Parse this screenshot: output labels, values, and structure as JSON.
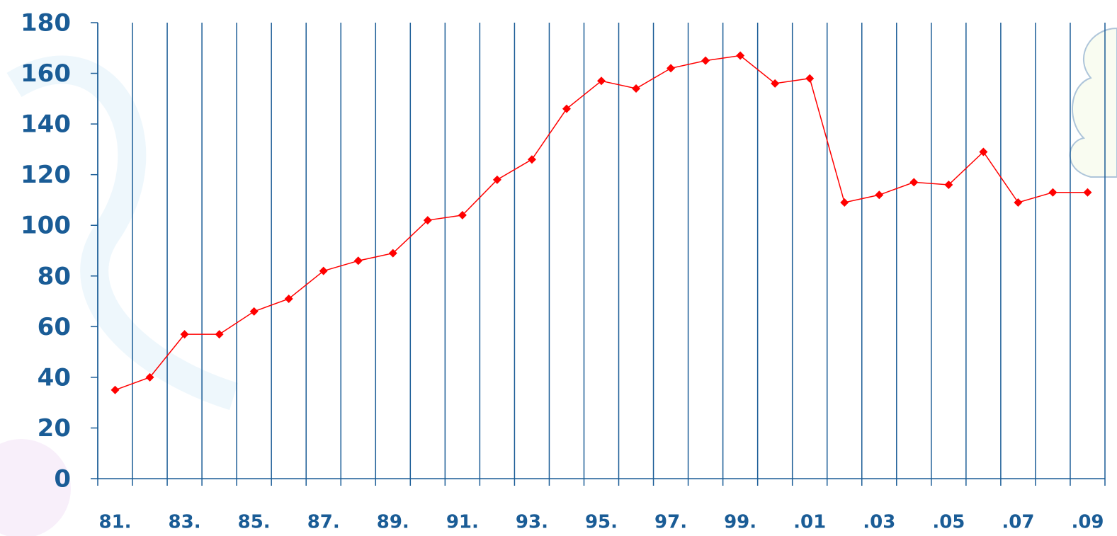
{
  "chart_data": {
    "type": "line",
    "categories": [
      "81.",
      null,
      "83.",
      null,
      "85.",
      null,
      "87.",
      null,
      "89.",
      null,
      "91.",
      null,
      "93.",
      null,
      "95.",
      null,
      "97.",
      null,
      "99.",
      null,
      ".01",
      null,
      ".03",
      null,
      ".05",
      null,
      ".07",
      null,
      ".09"
    ],
    "series": [
      {
        "color": "#ff0000",
        "values": [
          35,
          40,
          57,
          57,
          66,
          71,
          82,
          86,
          89,
          102,
          104,
          118,
          126,
          146,
          157,
          154,
          162,
          165,
          167,
          156,
          158,
          109,
          112,
          117,
          116,
          129,
          109,
          113,
          113
        ]
      }
    ],
    "ylim": [
      0,
      180
    ],
    "yticks": [
      0,
      20,
      40,
      60,
      80,
      100,
      120,
      140,
      160,
      180
    ]
  }
}
